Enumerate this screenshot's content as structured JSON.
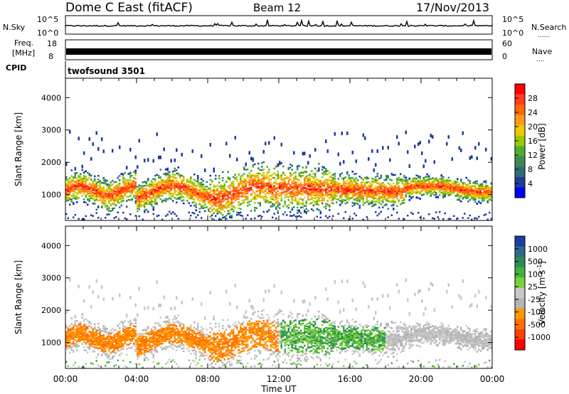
{
  "header": {
    "station": "Dome C East (fitACF)",
    "beam": "Beam 12",
    "date": "17/Nov/2013"
  },
  "labels": {
    "nsky": "N.Sky",
    "nsearch": "N.Search",
    "freq_line1": "Freq.",
    "freq_line2": "[MHz]",
    "nave": "Nave",
    "cpid": "CPID",
    "cpid_value": "twofsound 3501",
    "dotted": "......",
    "dotted_short": "...."
  },
  "chart_data": [
    {
      "type": "line",
      "panel": "noise",
      "left_axis": {
        "name": "N.Sky",
        "ticks": [
          "10^5",
          "10^0"
        ]
      },
      "right_axis": {
        "name": "N.Search",
        "ticks": [
          "10^5",
          "10^0"
        ]
      }
    },
    {
      "type": "line",
      "panel": "frequency",
      "left_axis": {
        "name": "Freq. [MHz]",
        "ticks": [
          "18",
          "8"
        ],
        "range": [
          8,
          18
        ]
      },
      "right_axis": {
        "name": "Nave",
        "ticks": [
          "60",
          "0"
        ],
        "range": [
          0,
          60
        ]
      }
    },
    {
      "type": "heatmap",
      "panel": "power",
      "ylabel": "Slant Range [km]",
      "ylim": [
        200,
        4600
      ],
      "yticks": [
        "4000",
        "3000",
        "2000",
        "1000"
      ],
      "xlim_hours": [
        0,
        24
      ],
      "colorbar": {
        "label": "Power [dB]",
        "ticks": [
          "28",
          "24",
          "20",
          "16",
          "12",
          "8",
          "4"
        ],
        "colors": [
          "#ff0000",
          "#ff3c1e",
          "#ff6a00",
          "#ff9a1e",
          "#f0c800",
          "#a0c800",
          "#4caf30",
          "#3c8c50",
          "#2e6e78",
          "#1e3c9a",
          "#0000ff"
        ]
      }
    },
    {
      "type": "heatmap",
      "panel": "velocity",
      "ylabel": "Slant Range [km]",
      "ylim": [
        200,
        4600
      ],
      "yticks": [
        "4000",
        "3000",
        "2000",
        "1000"
      ],
      "xlim_hours": [
        0,
        24
      ],
      "xticks": [
        "00:00",
        "04:00",
        "08:00",
        "12:00",
        "16:00",
        "20:00",
        "00:00"
      ],
      "xlabel": "Time UT",
      "colorbar": {
        "label": "Velocity [m s",
        "label_sup": "-1",
        "label_end": "]",
        "ticks": [
          "1000",
          "500",
          "100",
          "25",
          "-25",
          "-100",
          "-500",
          "-1000"
        ],
        "colors": [
          "#1a3fa0",
          "#2f6a8a",
          "#2e8b57",
          "#44b03c",
          "#7bd13c",
          "#c8c8c8",
          "#b4b4b4",
          "#ff9a00",
          "#ff7000",
          "#ff4000",
          "#ff0000"
        ]
      }
    }
  ]
}
